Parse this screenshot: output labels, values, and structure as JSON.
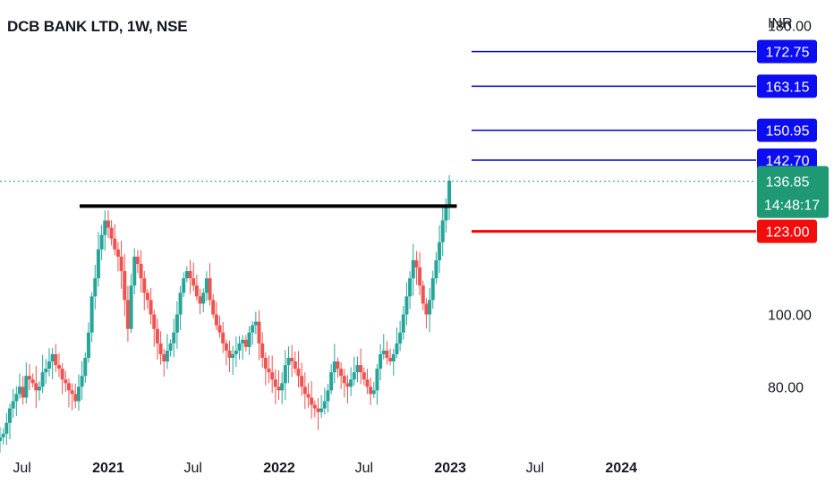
{
  "header": {
    "title": "DCB BANK LTD, 1W, NSE",
    "currency": "INR"
  },
  "colors": {
    "up": "#26a69a",
    "down": "#ef5350",
    "target_line": "#0000cc",
    "target_label_bg": "#0d0df2",
    "stop_line": "#ff0000",
    "stop_label_bg": "#f20d0d",
    "current_bg": "#1e9974",
    "resistance": "#000000"
  },
  "chart_data": {
    "type": "candlestick",
    "title": "DCB BANK LTD, 1W, NSE",
    "y_unit": "INR",
    "ylim": [
      64,
      187
    ],
    "x_range": [
      "2020-05-15",
      "2024-10-15"
    ],
    "x_ticks": [
      {
        "label": "Jul",
        "date": "2020-07-01",
        "bold": false
      },
      {
        "label": "2021",
        "date": "2021-01-01",
        "bold": true
      },
      {
        "label": "Jul",
        "date": "2021-07-01",
        "bold": false
      },
      {
        "label": "2022",
        "date": "2022-01-01",
        "bold": true
      },
      {
        "label": "Jul",
        "date": "2022-07-01",
        "bold": false
      },
      {
        "label": "2023",
        "date": "2023-01-01",
        "bold": true
      },
      {
        "label": "Jul",
        "date": "2023-07-01",
        "bold": false
      },
      {
        "label": "2024",
        "date": "2024-01-01",
        "bold": true
      }
    ],
    "y_ticks": [
      {
        "label": "180.00",
        "value": 180
      },
      {
        "label": "100.00",
        "value": 100
      },
      {
        "label": "80.00",
        "value": 80
      }
    ],
    "series_start": "2020-05-15",
    "weekly_closes": [
      66,
      67,
      70,
      74,
      76,
      78,
      80,
      77,
      83,
      82,
      81,
      79,
      80,
      84,
      85,
      87,
      89,
      86,
      85,
      82,
      81,
      79,
      78,
      76,
      80,
      83,
      88,
      95,
      105,
      110,
      118,
      122,
      126,
      124,
      121,
      118,
      116,
      112,
      104,
      96,
      108,
      116,
      114,
      110,
      106,
      104,
      100,
      96,
      92,
      89,
      87,
      90,
      92,
      95,
      100,
      106,
      110,
      112,
      110,
      108,
      105,
      103,
      106,
      110,
      104,
      100,
      97,
      95,
      92,
      90,
      88,
      89,
      90,
      92,
      93,
      91,
      95,
      97,
      98,
      92,
      88,
      85,
      84,
      82,
      80,
      79,
      81,
      86,
      88,
      87,
      85,
      83,
      80,
      78,
      77,
      75,
      74,
      73,
      74,
      76,
      79,
      84,
      87,
      85,
      83,
      81,
      80,
      82,
      84,
      86,
      84,
      82,
      80,
      78,
      79,
      85,
      89,
      90,
      88,
      87,
      89,
      92,
      95,
      100,
      105,
      110,
      115,
      113,
      108,
      103,
      100,
      104,
      110,
      115,
      120,
      126,
      130,
      137
    ],
    "weekly_closes_note": "",
    "current_price": 136.85,
    "resistance_line": {
      "value": 130,
      "from": "2020-11-01",
      "to": "2023-01-15"
    },
    "targets": [
      {
        "label": "172.75",
        "value": 172.75
      },
      {
        "label": "163.15",
        "value": 163.15
      },
      {
        "label": "150.95",
        "value": 150.95
      },
      {
        "label": "142.70",
        "value": 142.7
      }
    ],
    "stop_loss": {
      "label": "123.00",
      "value": 123.0
    },
    "current_label": {
      "price": "136.85",
      "countdown": "14:48:17"
    },
    "grid": false,
    "legend": "none"
  }
}
